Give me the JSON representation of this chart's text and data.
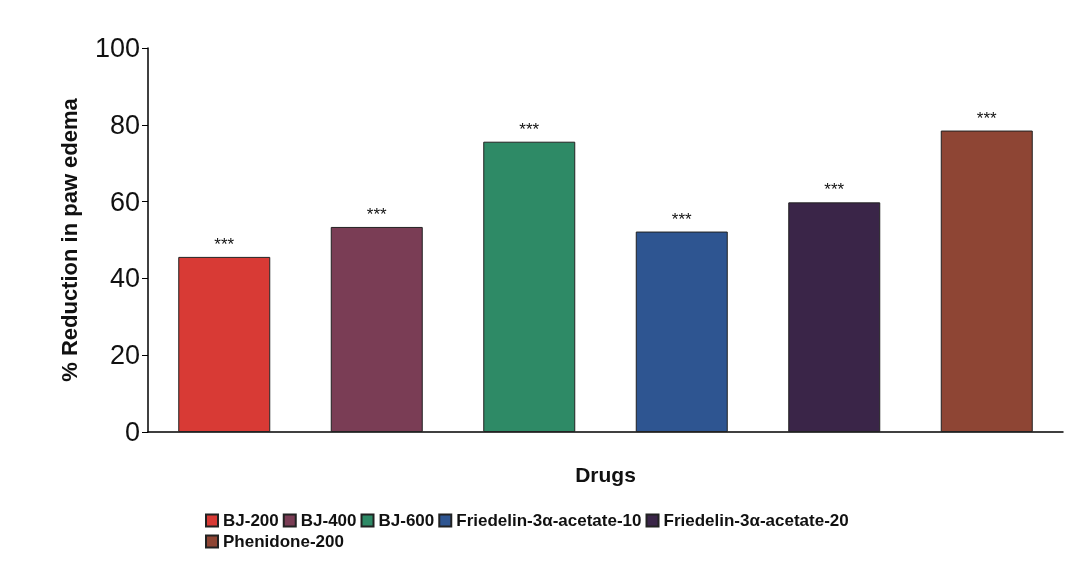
{
  "chart_data": {
    "type": "bar",
    "xlabel": "Drugs",
    "ylabel": "% Reduction in paw edema",
    "categories": [
      null,
      null,
      null,
      null,
      null,
      null
    ],
    "series": [
      {
        "name": "BJ-200",
        "color": "#d83a35",
        "values": [
          45.6,
          null,
          null,
          null,
          null,
          null
        ],
        "value_labels": [
          "***",
          null,
          null,
          null,
          null,
          null
        ]
      },
      {
        "name": "BJ-400",
        "color": "#7a3d55",
        "values": [
          null,
          53.4,
          null,
          null,
          null,
          null
        ],
        "value_labels": [
          null,
          "***",
          null,
          null,
          null,
          null
        ]
      },
      {
        "name": "BJ-600",
        "color": "#2e8a66",
        "values": [
          null,
          null,
          75.6,
          null,
          null,
          null
        ],
        "value_labels": [
          null,
          null,
          "***",
          null,
          null,
          null
        ]
      },
      {
        "name": "Friedelin-3α-acetate-10",
        "color": "#2e5591",
        "values": [
          null,
          null,
          null,
          52.2,
          null,
          null
        ],
        "value_labels": [
          null,
          null,
          null,
          "***",
          null,
          null
        ]
      },
      {
        "name": "Friedelin-3α-acetate-20",
        "color": "#3a2548",
        "values": [
          null,
          null,
          null,
          null,
          59.8,
          null
        ],
        "value_labels": [
          null,
          null,
          null,
          null,
          "***",
          null
        ]
      },
      {
        "name": "Phenidone-200",
        "color": "#8e4534",
        "values": [
          null,
          null,
          null,
          null,
          null,
          78.5
        ],
        "value_labels": [
          null,
          null,
          null,
          null,
          null,
          "***"
        ]
      }
    ],
    "ylim": [
      0,
      100
    ],
    "yticks": [
      0,
      20,
      40,
      60,
      80,
      100
    ],
    "grid": false,
    "legend": "bottom"
  }
}
